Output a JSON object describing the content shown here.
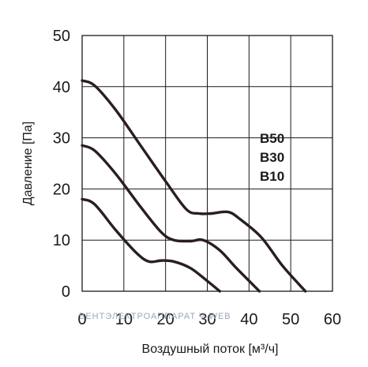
{
  "chart_data": {
    "type": "line",
    "xlabel": "Воздушный поток [м³/ч]",
    "ylabel": "Давление [Па]",
    "xlim": [
      0,
      60
    ],
    "ylim": [
      0,
      50
    ],
    "x_ticks": [
      0,
      10,
      20,
      30,
      40,
      50,
      60
    ],
    "y_ticks": [
      0,
      10,
      20,
      30,
      40,
      50
    ],
    "grid": true,
    "legend_labels": [
      "B50",
      "B30",
      "B10"
    ],
    "watermark": "ВЕНТЭЛЕКТРОАППАРАТ V-WEB",
    "series": [
      {
        "name": "B50",
        "x": [
          0,
          3,
          8,
          14,
          20,
          25,
          28,
          31,
          35,
          38,
          43,
          48,
          53.5
        ],
        "y": [
          41.2,
          40.2,
          35.5,
          28.5,
          21.5,
          16,
          15.2,
          15.2,
          15.5,
          14,
          10.5,
          5,
          0
        ]
      },
      {
        "name": "B30",
        "x": [
          0,
          3,
          8,
          14,
          19,
          22,
          26,
          29,
          33,
          37,
          42.5
        ],
        "y": [
          28.5,
          27.5,
          23,
          16.5,
          11.5,
          10,
          9.8,
          10,
          8,
          4.5,
          0
        ]
      },
      {
        "name": "B10",
        "x": [
          0,
          3,
          8,
          13,
          16,
          19,
          22,
          26,
          30,
          33
        ],
        "y": [
          18,
          17,
          12,
          7.5,
          5.8,
          6,
          5.8,
          4.5,
          2,
          0
        ]
      }
    ],
    "line_color": "#2b1e1e"
  }
}
